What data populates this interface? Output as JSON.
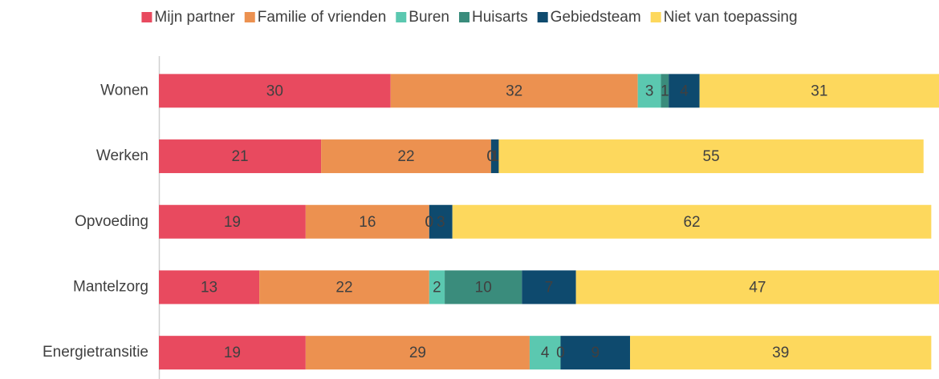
{
  "chart_data": {
    "type": "stacked_bar_horizontal",
    "categories": [
      "Wonen",
      "Werken",
      "Opvoeding",
      "Mantelzorg",
      "Energietransitie"
    ],
    "series": [
      {
        "name": "Mijn partner",
        "color": "#e84a5f",
        "values": [
          30,
          21,
          19,
          13,
          19
        ]
      },
      {
        "name": "Familie of vrienden",
        "color": "#ec9150",
        "values": [
          32,
          22,
          16,
          22,
          29
        ]
      },
      {
        "name": "Buren",
        "color": "#5bc8b0",
        "values": [
          3,
          0,
          0,
          2,
          4
        ]
      },
      {
        "name": "Huisarts",
        "color": "#3a8c7c",
        "values": [
          1,
          0,
          0,
          10,
          0
        ]
      },
      {
        "name": "Gebiedsteam",
        "color": "#0e4a6e",
        "values": [
          4,
          1,
          3,
          7,
          9
        ]
      },
      {
        "name": "Niet van toepassing",
        "color": "#fdd85d",
        "values": [
          31,
          55,
          62,
          47,
          39
        ]
      }
    ],
    "xlim": [
      0,
      101
    ],
    "legend": "top"
  }
}
